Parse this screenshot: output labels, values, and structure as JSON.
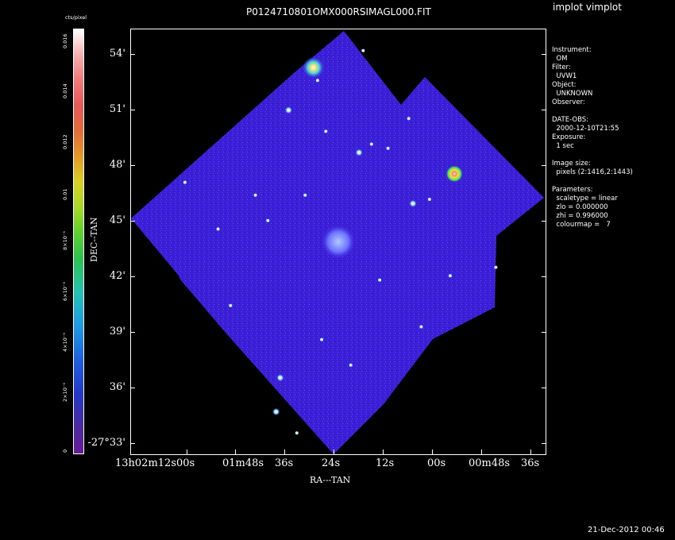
{
  "window": {
    "plot_title": "P0124710801OMX000RSIMAGL000.FIT",
    "tool_label": "implot vimplot",
    "timestamp": "21-Dec-2012 00:46"
  },
  "colorbar": {
    "unit_label": "cts/pixel",
    "tick_labels": [
      "0",
      "2×10⁻³",
      "4×10⁻³",
      "6×10⁻³",
      "8×10⁻³",
      "0.01",
      "0.012",
      "0.014",
      "0.016"
    ],
    "colormap_colors": [
      "#6a1b9a",
      "#2437c8",
      "#1e9be6",
      "#2ec24e",
      "#d8d024",
      "#e85858",
      "#ffffff"
    ]
  },
  "axes": {
    "ylabel": "DEC--TAN",
    "xlabel": "RA---TAN",
    "y_ticks": [
      "54'",
      "51'",
      "48'",
      "45'",
      "42'",
      "39'",
      "36'",
      "-27°33'"
    ],
    "x_ticks": [
      "13h02m12s",
      "00s",
      "01m48s",
      "36s",
      "24s",
      "12s",
      "00s",
      "00m48s",
      "36s"
    ]
  },
  "image": {
    "background_color": "#3a1fd6",
    "sources": [
      {
        "ra": 0.44,
        "dec": 0.09,
        "kind": "galaxy"
      },
      {
        "ra": 0.38,
        "dec": 0.19,
        "kind": "star"
      },
      {
        "ra": 0.55,
        "dec": 0.29,
        "kind": "star"
      },
      {
        "ra": 0.78,
        "dec": 0.34,
        "kind": "bright"
      },
      {
        "ra": 0.5,
        "dec": 0.5,
        "kind": "cluster"
      },
      {
        "ra": 0.36,
        "dec": 0.82,
        "kind": "star"
      },
      {
        "ra": 0.35,
        "dec": 0.9,
        "kind": "star"
      },
      {
        "ra": 0.68,
        "dec": 0.41,
        "kind": "star"
      }
    ]
  },
  "info_panel": {
    "lines": [
      "Instrument:",
      "  OM",
      "Filter:",
      "  UVW1",
      "Object:",
      "  UNKNOWN",
      "Observer:",
      "",
      "DATE-OBS:",
      "  2000-12-10T21:55",
      "Exposure:",
      "  1 sec",
      "",
      "Image size:",
      "  pixels (2:1416,2:1443)",
      "",
      "Parameters:",
      "  scaletype = linear",
      "  zlo = 0.000000",
      "  zhi = 0.996000",
      "  colourmap =   7"
    ]
  }
}
